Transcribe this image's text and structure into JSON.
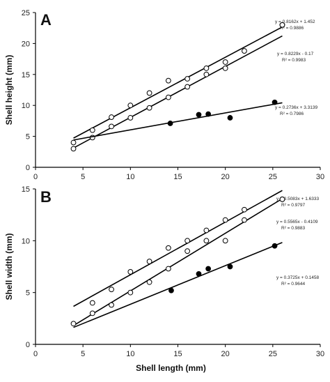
{
  "chart_data": [
    {
      "type": "scatter",
      "panel_label": "A",
      "ylabel": "Shell height (mm)",
      "xlabel": "",
      "xlim": [
        0,
        30
      ],
      "ylim": [
        0,
        25
      ],
      "x_ticks": [
        0,
        5,
        10,
        15,
        20,
        25,
        30
      ],
      "y_ticks": [
        0,
        5,
        10,
        15,
        20,
        25
      ],
      "grid": false,
      "series": [
        {
          "marker": "open-circle",
          "points": [
            [
              4,
              4
            ],
            [
              6,
              6
            ],
            [
              8,
              8.1
            ],
            [
              10,
              10
            ],
            [
              12,
              12
            ],
            [
              14,
              14
            ],
            [
              16,
              14.3
            ],
            [
              18,
              16
            ],
            [
              20,
              17
            ],
            [
              22,
              18.8
            ],
            [
              26,
              23
            ]
          ],
          "fit": {
            "slope": 0.8162,
            "intercept": 1.452,
            "x_range": [
              4,
              26
            ]
          },
          "equation": "y = 0.8162x + 1.452",
          "r2": "R² = 0.9886"
        },
        {
          "marker": "open-circle",
          "points": [
            [
              4,
              3
            ],
            [
              6,
              4.8
            ],
            [
              8,
              6.6
            ],
            [
              10,
              8
            ],
            [
              12,
              9.6
            ],
            [
              14,
              11.3
            ],
            [
              16,
              13
            ],
            [
              18,
              15
            ],
            [
              20,
              16
            ],
            [
              26,
              23
            ]
          ],
          "fit": {
            "slope": 0.8229,
            "intercept": -0.17,
            "x_range": [
              4,
              26
            ]
          },
          "equation": "y = 0.8229x - 0.17",
          "r2": "R² = 0.9983"
        },
        {
          "marker": "filled-circle",
          "points": [
            [
              14.2,
              7.1
            ],
            [
              17.2,
              8.5
            ],
            [
              18.2,
              8.6
            ],
            [
              20.5,
              8
            ],
            [
              25.2,
              10.5
            ]
          ],
          "fit": {
            "slope": 0.2736,
            "intercept": 3.3139,
            "x_range": [
              4,
              26
            ]
          },
          "equation": "y = 0.2736x + 3.3139",
          "r2": "R² = 0.7986"
        }
      ]
    },
    {
      "type": "scatter",
      "panel_label": "B",
      "ylabel": "Shell width (mm)",
      "xlabel": "Shell length (mm)",
      "xlim": [
        0,
        30
      ],
      "ylim": [
        0,
        15
      ],
      "x_ticks": [
        0,
        5,
        10,
        15,
        20,
        25,
        30
      ],
      "y_ticks": [
        0,
        5,
        10,
        15
      ],
      "grid": false,
      "series": [
        {
          "marker": "open-circle",
          "points": [
            [
              6,
              4
            ],
            [
              8,
              5.3
            ],
            [
              10,
              7
            ],
            [
              12,
              8
            ],
            [
              14,
              9.3
            ],
            [
              16,
              10
            ],
            [
              18,
              11
            ],
            [
              20,
              12
            ],
            [
              22,
              13
            ],
            [
              26,
              14
            ]
          ],
          "fit": {
            "slope": 0.5083,
            "intercept": 1.6333,
            "x_range": [
              4,
              26
            ]
          },
          "equation": "y = 0.5083x + 1.6333",
          "r2": "R² = 0.9797"
        },
        {
          "marker": "open-circle",
          "points": [
            [
              4,
              2
            ],
            [
              6,
              3
            ],
            [
              8,
              3.8
            ],
            [
              10,
              5
            ],
            [
              12,
              6
            ],
            [
              14,
              7.3
            ],
            [
              16,
              9
            ],
            [
              18,
              10
            ],
            [
              20,
              10
            ],
            [
              22,
              12
            ],
            [
              26,
              14
            ]
          ],
          "fit": {
            "slope": 0.5565,
            "intercept": -0.4109,
            "x_range": [
              4,
              26
            ]
          },
          "equation": "y = 0.5565x - 0.4109",
          "r2": "R² = 0.9883"
        },
        {
          "marker": "filled-circle",
          "points": [
            [
              14.3,
              5.2
            ],
            [
              17.2,
              6.8
            ],
            [
              18.2,
              7.3
            ],
            [
              20.5,
              7.5
            ],
            [
              25.2,
              9.5
            ]
          ],
          "fit": {
            "slope": 0.3725,
            "intercept": 0.1458,
            "x_range": [
              4,
              26
            ]
          },
          "equation": "y = 0.3725x + 0.1458",
          "r2": "R² = 0.9644"
        }
      ]
    }
  ]
}
